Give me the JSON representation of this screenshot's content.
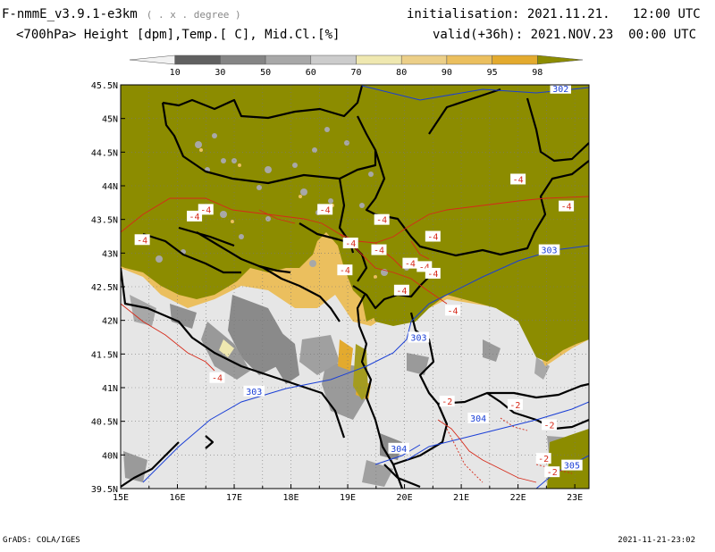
{
  "header": {
    "model": "F-nmmE_v3.9.1-e3km",
    "units_note": "( . x . degree )",
    "fields": "<700hPa> Height [dpm],Temp.[ C], Mid.Cl.[%]",
    "init_label": "initialisation:",
    "init_value": "2021.11.21.   12:00 UTC",
    "valid_label": "valid(+36h):",
    "valid_value": "2021.NOV.23  00:00 UTC"
  },
  "colorbar": {
    "levels": [
      "10",
      "30",
      "50",
      "60",
      "70",
      "80",
      "90",
      "95",
      "98"
    ],
    "colors": [
      "#f2f2f2",
      "#606060",
      "#858585",
      "#a8a8a8",
      "#cccccc",
      "#efe8b0",
      "#eccf88",
      "#ebbf5e",
      "#e3aa2e",
      "#8c8c00"
    ]
  },
  "map": {
    "lon_ticks": [
      "15E",
      "16E",
      "17E",
      "18E",
      "19E",
      "20E",
      "21E",
      "22E",
      "23E"
    ],
    "lat_ticks": [
      "45.5N",
      "45N",
      "44.5N",
      "44N",
      "43.5N",
      "43N",
      "42.5N",
      "42N",
      "41.5N",
      "41N",
      "40.5N",
      "40N",
      "39.5N"
    ],
    "colors": {
      "high_cloud": "#8c8c00",
      "low_cloud": "#e6e6e6",
      "height_contour": "#1a3fd6",
      "temp_contour": "#d62a1a"
    },
    "height_labels": [
      {
        "text": "302",
        "lon": 22.75,
        "lat": 45.45
      },
      {
        "text": "303",
        "lon": 22.55,
        "lat": 43.05
      },
      {
        "text": "303",
        "lon": 20.25,
        "lat": 41.75
      },
      {
        "text": "303",
        "lon": 17.35,
        "lat": 40.95
      },
      {
        "text": "304",
        "lon": 21.3,
        "lat": 40.55
      },
      {
        "text": "304",
        "lon": 19.9,
        "lat": 40.1
      },
      {
        "text": "305",
        "lon": 22.95,
        "lat": 39.85
      }
    ],
    "temp_labels": [
      {
        "text": "-4",
        "lon": 22.0,
        "lat": 44.1
      },
      {
        "text": "-4",
        "lon": 22.85,
        "lat": 43.7
      },
      {
        "text": "-4",
        "lon": 16.5,
        "lat": 43.65
      },
      {
        "text": "-4",
        "lon": 16.3,
        "lat": 43.55
      },
      {
        "text": "-4",
        "lon": 15.38,
        "lat": 43.2
      },
      {
        "text": "-4",
        "lon": 18.6,
        "lat": 43.65
      },
      {
        "text": "-4",
        "lon": 19.6,
        "lat": 43.5
      },
      {
        "text": "-4",
        "lon": 20.5,
        "lat": 43.25
      },
      {
        "text": "-4",
        "lon": 19.05,
        "lat": 43.15
      },
      {
        "text": "-4",
        "lon": 19.55,
        "lat": 43.05
      },
      {
        "text": "-4",
        "lon": 20.1,
        "lat": 42.85
      },
      {
        "text": "-4",
        "lon": 20.35,
        "lat": 42.8
      },
      {
        "text": "-4",
        "lon": 20.5,
        "lat": 42.7
      },
      {
        "text": "-4",
        "lon": 18.95,
        "lat": 42.75
      },
      {
        "text": "-4",
        "lon": 19.95,
        "lat": 42.45
      },
      {
        "text": "-4",
        "lon": 20.85,
        "lat": 42.15
      },
      {
        "text": "-4",
        "lon": 16.7,
        "lat": 41.15
      },
      {
        "text": "-2",
        "lon": 20.75,
        "lat": 40.8
      },
      {
        "text": "-2",
        "lon": 21.95,
        "lat": 40.75
      },
      {
        "text": "-2",
        "lon": 22.55,
        "lat": 40.45
      },
      {
        "text": "-2",
        "lon": 22.45,
        "lat": 39.95
      },
      {
        "text": "-2",
        "lon": 22.6,
        "lat": 39.75
      }
    ]
  },
  "footer": {
    "left": "GrADS: COLA/IGES",
    "right": "2021-11-21-23:02"
  }
}
